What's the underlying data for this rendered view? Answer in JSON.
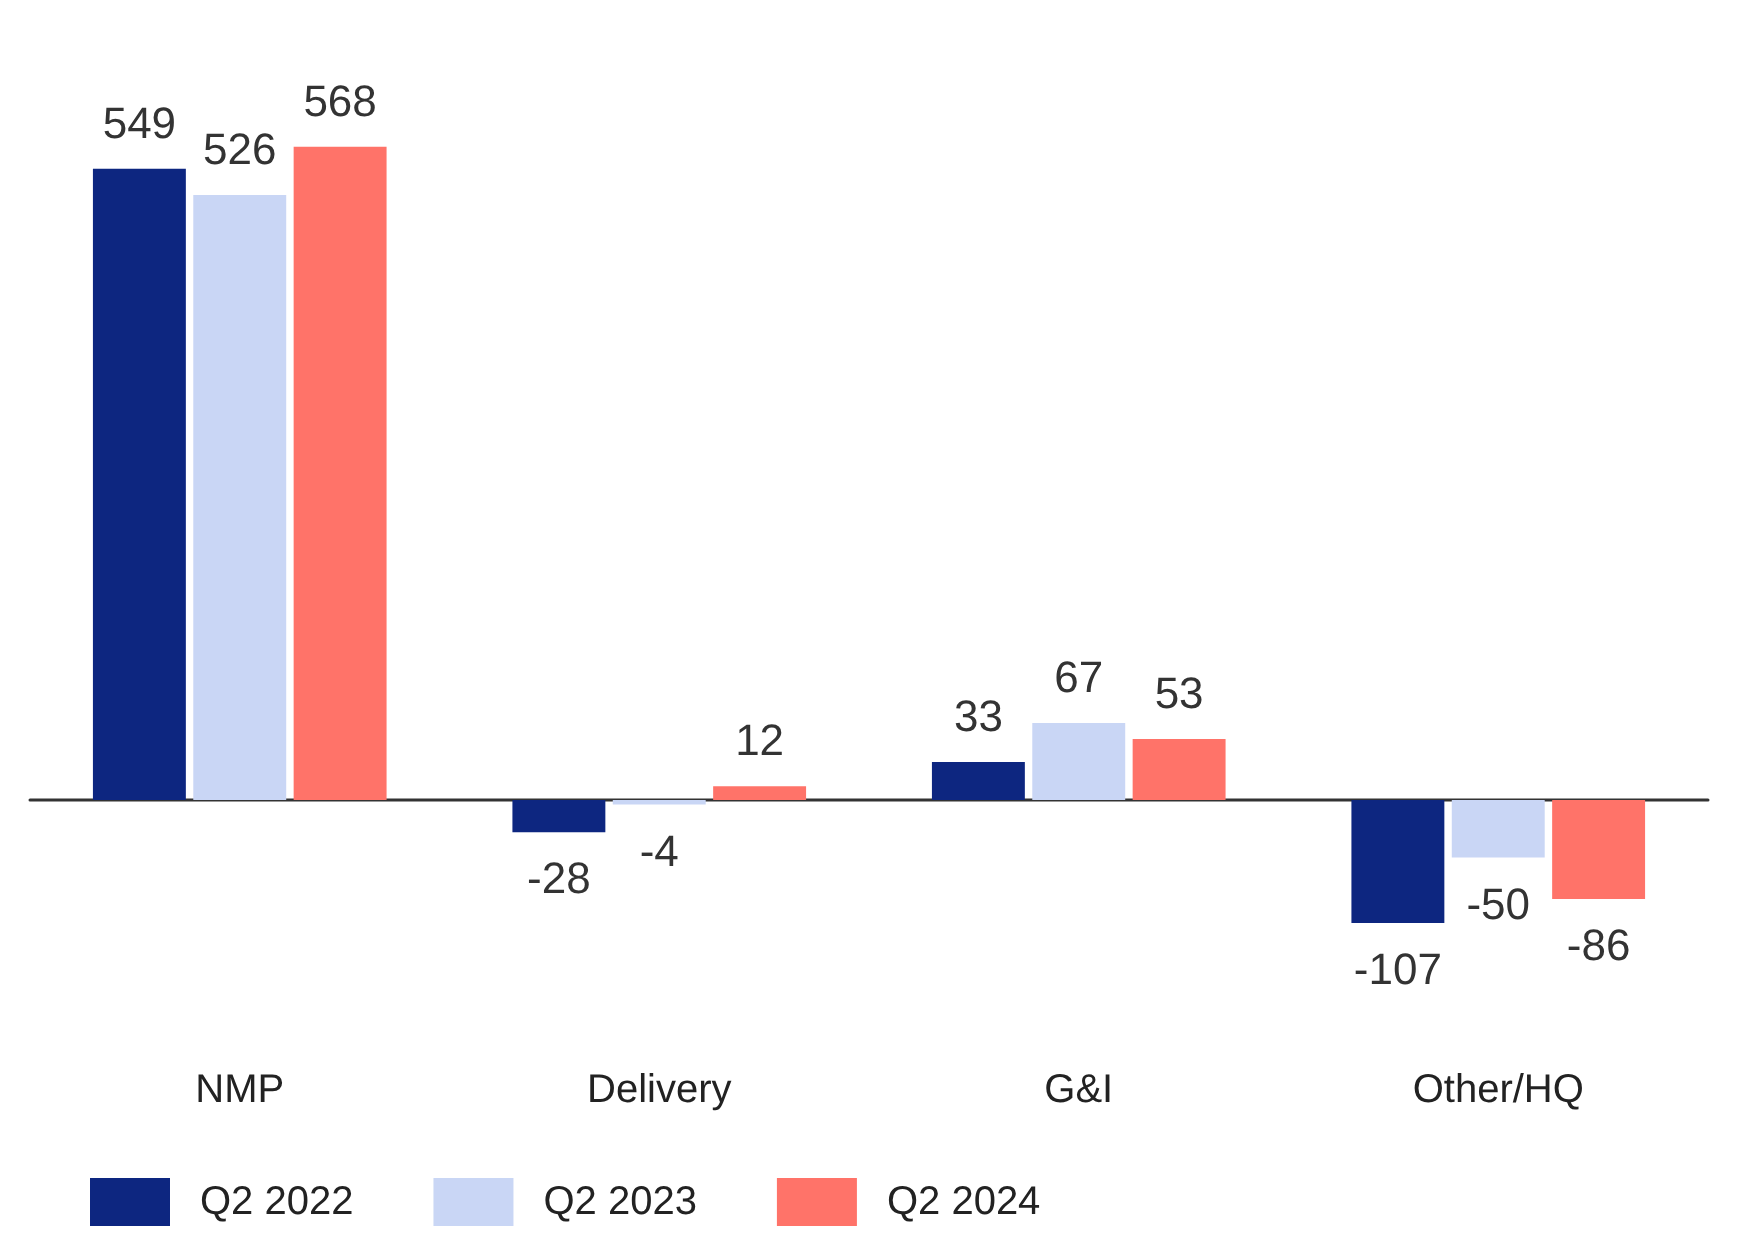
{
  "chart_data": {
    "type": "bar",
    "categories": [
      "NMP",
      "Delivery",
      "G&I",
      "Other/HQ"
    ],
    "series": [
      {
        "name": "Q2 2022",
        "color": "#0d2680",
        "values": [
          549,
          -28,
          33,
          -107
        ]
      },
      {
        "name": "Q2 2023",
        "color": "#c9d6f5",
        "values": [
          526,
          -4,
          67,
          -50
        ]
      },
      {
        "name": "Q2 2024",
        "color": "#ff7369",
        "values": [
          568,
          12,
          53,
          -86
        ]
      }
    ],
    "data_labels": true,
    "legend": "bottom left"
  }
}
